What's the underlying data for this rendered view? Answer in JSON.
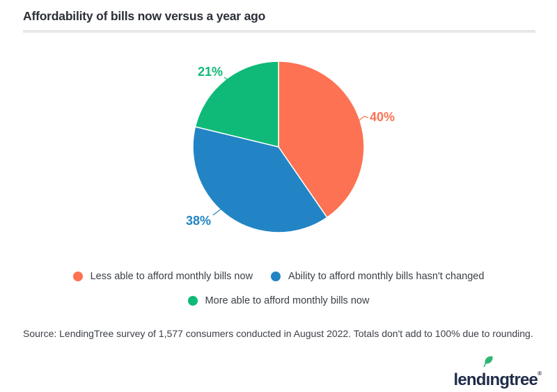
{
  "chart_data": {
    "type": "pie",
    "title": "Affordability of bills now versus a year ago",
    "direction": "clockwise",
    "start_angle": "12 o'clock",
    "legend_position": "bottom",
    "note": "Totals don't add to 100% due to rounding.",
    "slices": [
      {
        "label": "Less able to afford monthly bills now",
        "value": 40,
        "display": "40%",
        "color": "#fd7252"
      },
      {
        "label": "Ability to afford monthly bills hasn't changed",
        "value": 38,
        "display": "38%",
        "color": "#2284c4"
      },
      {
        "label": "More able to afford monthly bills now",
        "value": 21,
        "display": "21%",
        "color": "#0fba78"
      }
    ]
  },
  "source": {
    "text": "Source: LendingTree survey of 1,577 consumers conducted in August 2022. Totals don't add to 100% due to rounding."
  },
  "footer": {
    "logo": {
      "text": "lendingtree",
      "part_before_i": "lend",
      "dotless_i": "ı",
      "part_after_i": "ngtree",
      "registered_mark": "®",
      "text_color": "#1f2b49",
      "leaf_color": "#2eb673"
    }
  }
}
